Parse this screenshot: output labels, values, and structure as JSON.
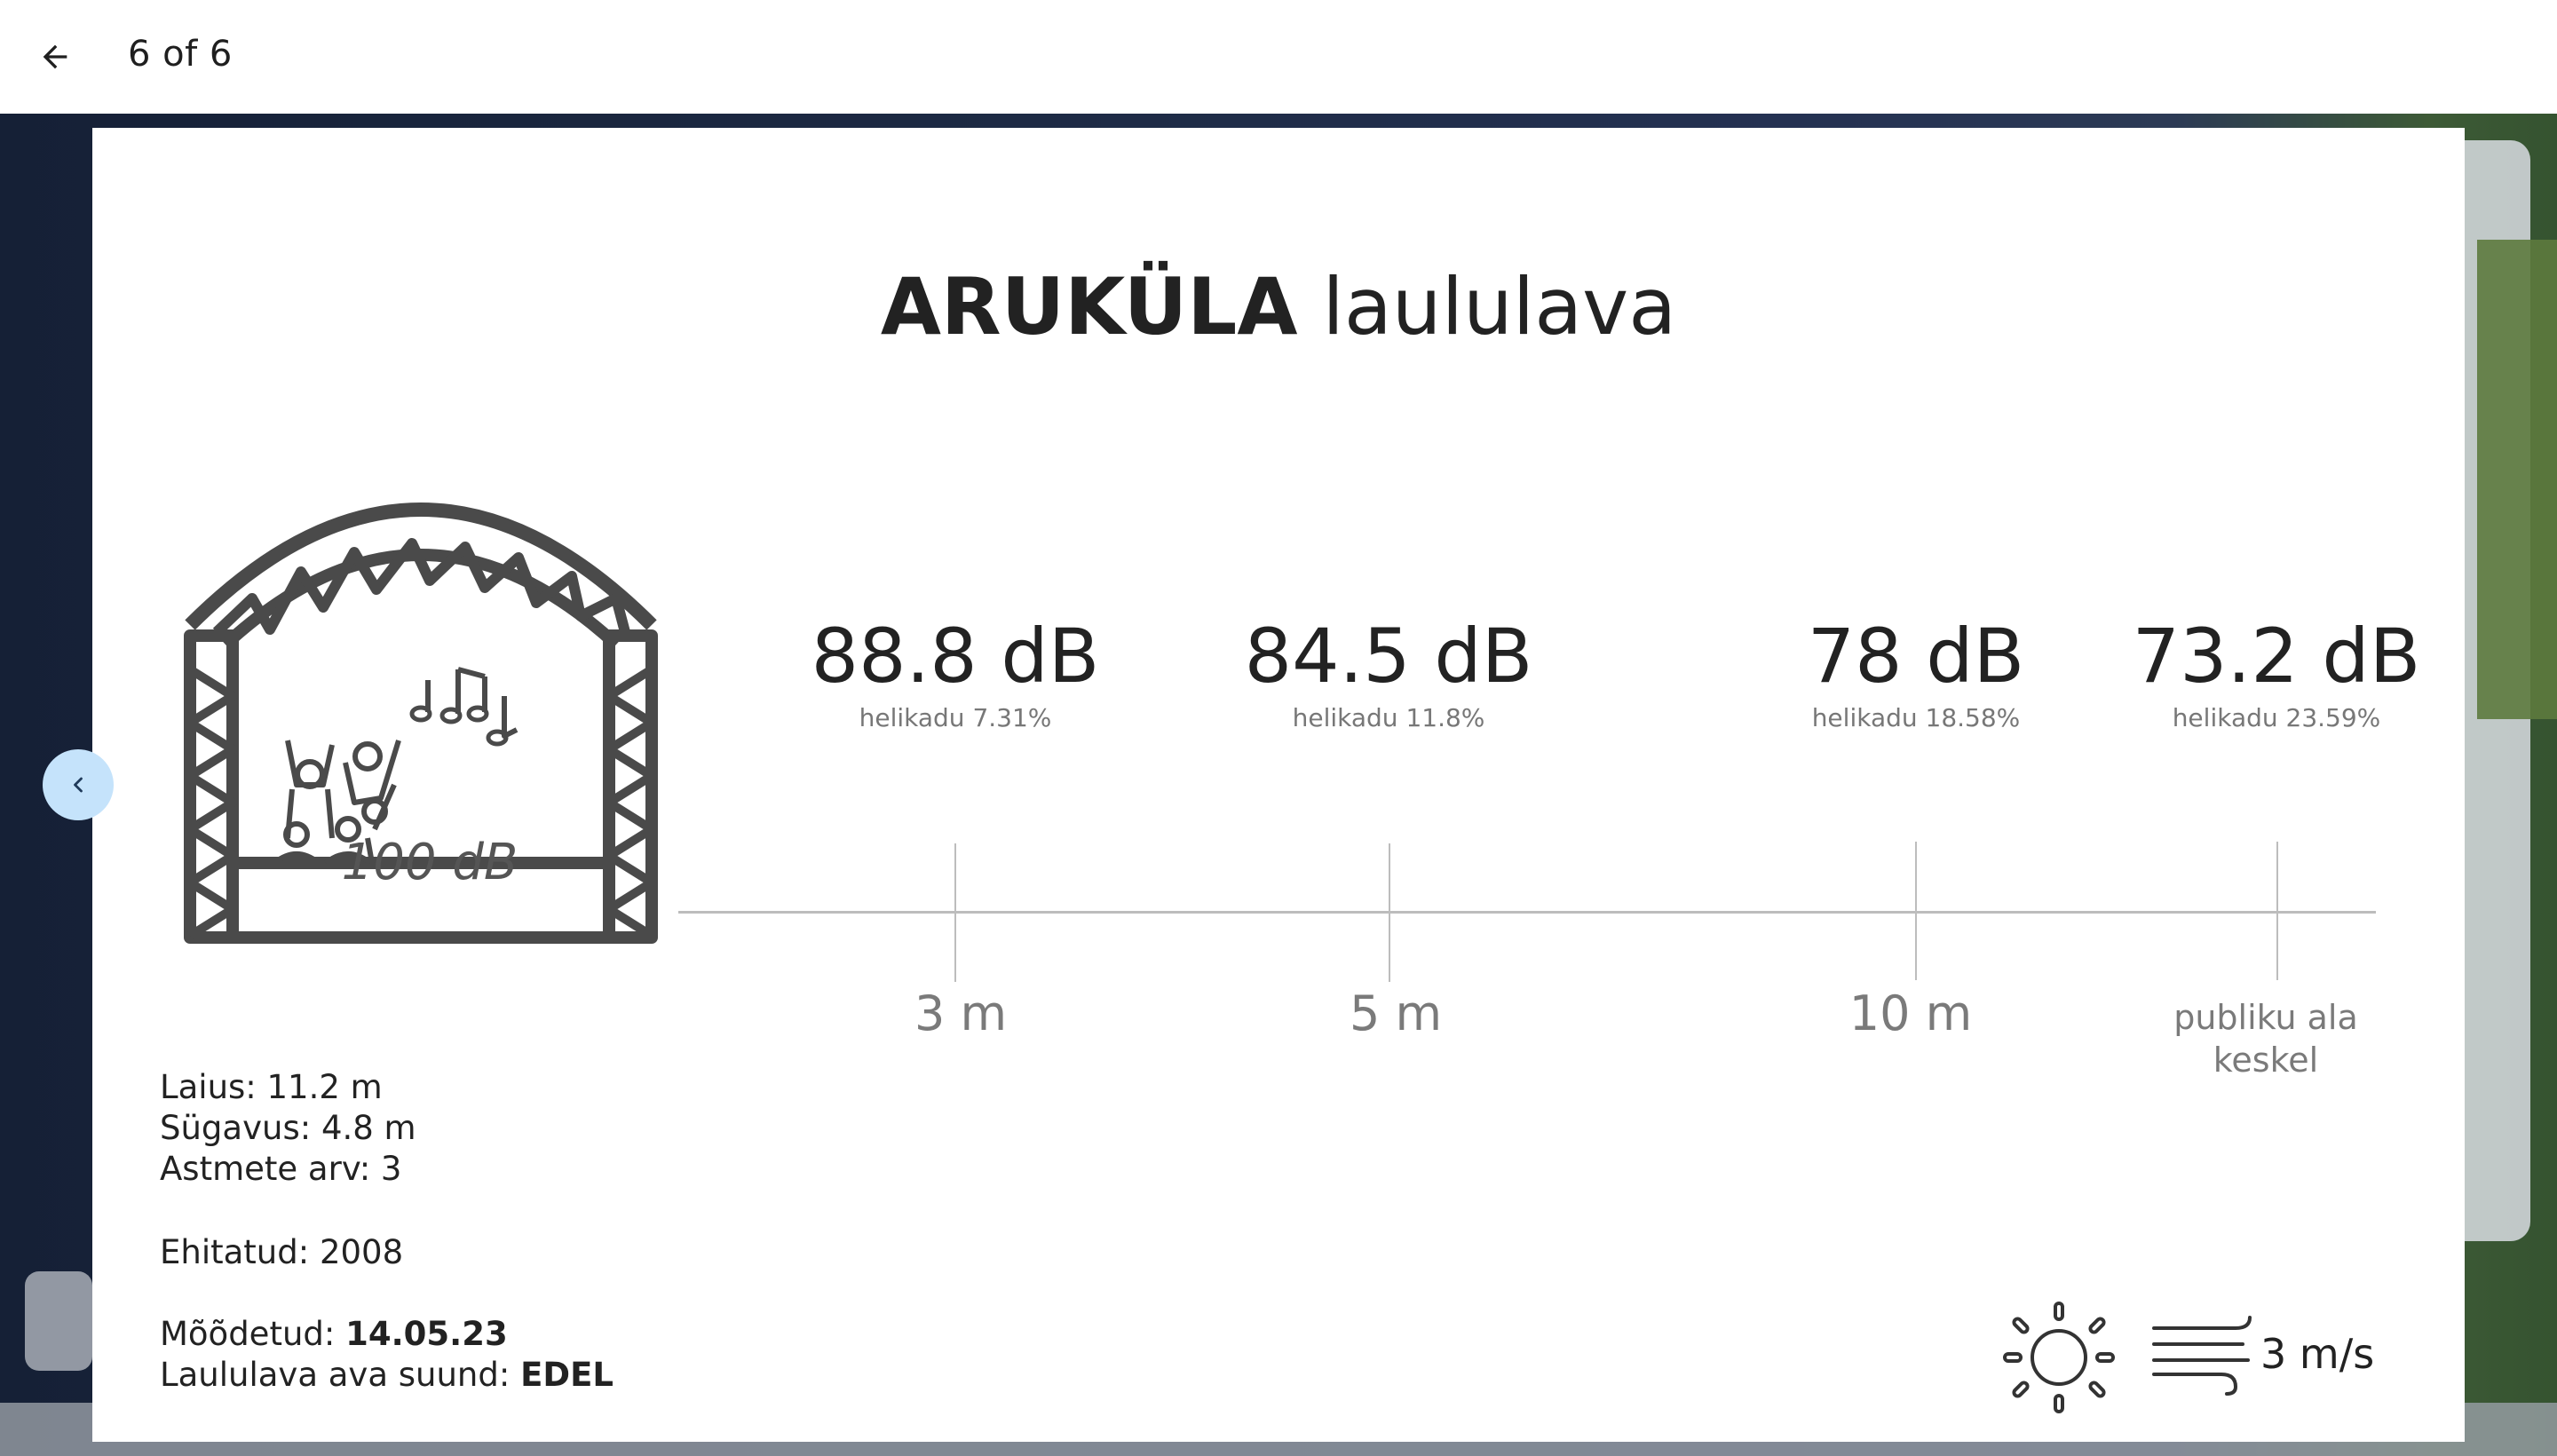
{
  "topbar": {
    "back_icon": "arrow-left-icon",
    "counter": "6 of 6"
  },
  "slide": {
    "title_bold": "ARUKÜLA",
    "title_light": "laululava",
    "stage_level": "100 dB",
    "readings": [
      {
        "db": "88.8 dB",
        "noise": "helikadu 7.31%",
        "distance": "3 m"
      },
      {
        "db": "84.5 dB",
        "noise": "helikadu 11.8%",
        "distance": "5 m"
      },
      {
        "db": "78 dB",
        "noise": "helikadu 18.58%",
        "distance": "10 m"
      },
      {
        "db": "73.2 dB",
        "noise": "helikadu 23.59%",
        "distance_line1": "publiku ala",
        "distance_line2": "keskel"
      }
    ],
    "specs": {
      "width": "Laius: 11.2 m",
      "depth": "Sügavus: 4.8 m",
      "steps": "Astmete arv: 3",
      "built": "Ehitatud: 2008",
      "measured_label": "Mõõdetud: ",
      "measured_value": "14.05.23",
      "direction_label": "Laululava ava suund: ",
      "direction_value": "EDEL"
    },
    "weather": {
      "sun_icon": "sun-icon",
      "wind_icon": "wind-icon",
      "wind_speed": "3 m/s"
    }
  },
  "nav": {
    "prev_icon": "chevron-left-icon"
  },
  "colors": {
    "accent_button": "#c5e3fb",
    "stage_gray": "#4a4a4a"
  }
}
